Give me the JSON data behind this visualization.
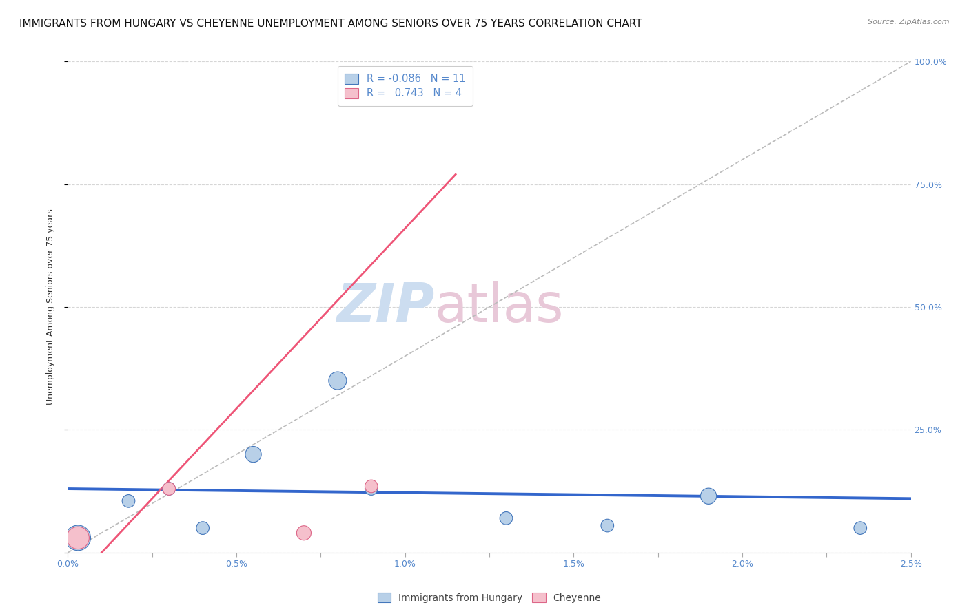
{
  "title": "IMMIGRANTS FROM HUNGARY VS CHEYENNE UNEMPLOYMENT AMONG SENIORS OVER 75 YEARS CORRELATION CHART",
  "source": "Source: ZipAtlas.com",
  "xlabel": "",
  "ylabel": "Unemployment Among Seniors over 75 years",
  "xlim": [
    0.0,
    0.025
  ],
  "ylim": [
    0.0,
    1.0
  ],
  "xtick_labels": [
    "0.0%",
    "",
    "0.5%",
    "",
    "1.0%",
    "",
    "1.5%",
    "",
    "2.0%",
    "",
    "2.5%"
  ],
  "xtick_vals": [
    0.0,
    0.0025,
    0.005,
    0.0075,
    0.01,
    0.0125,
    0.015,
    0.0175,
    0.02,
    0.0225,
    0.025
  ],
  "xtick_display": [
    true,
    false,
    true,
    false,
    true,
    false,
    true,
    false,
    true,
    false,
    true
  ],
  "ytick_labels_right": [
    "",
    "25.0%",
    "50.0%",
    "75.0%",
    "100.0%"
  ],
  "ytick_vals": [
    0.0,
    0.25,
    0.5,
    0.75,
    1.0
  ],
  "blue_scatter_x": [
    0.0003,
    0.0018,
    0.003,
    0.004,
    0.0055,
    0.008,
    0.009,
    0.013,
    0.016,
    0.019,
    0.0235
  ],
  "blue_scatter_y": [
    0.03,
    0.105,
    0.13,
    0.05,
    0.2,
    0.35,
    0.13,
    0.07,
    0.055,
    0.115,
    0.05
  ],
  "blue_scatter_sizes": [
    700,
    180,
    180,
    180,
    280,
    350,
    180,
    180,
    180,
    280,
    180
  ],
  "pink_scatter_x": [
    0.0003,
    0.003,
    0.007,
    0.009
  ],
  "pink_scatter_y": [
    0.03,
    0.13,
    0.04,
    0.135
  ],
  "pink_scatter_sizes": [
    550,
    180,
    230,
    180
  ],
  "blue_line_x": [
    0.0,
    0.025
  ],
  "blue_line_y": [
    0.13,
    0.11
  ],
  "pink_line_x": [
    0.001,
    0.0115
  ],
  "pink_line_y": [
    0.0,
    0.77
  ],
  "diag_line_x": [
    0.0,
    0.025
  ],
  "diag_line_y": [
    0.0,
    1.0
  ],
  "R_blue": "-0.086",
  "N_blue": "11",
  "R_pink": "0.743",
  "N_pink": "4",
  "blue_color": "#b8d0e8",
  "blue_dark": "#4477bb",
  "blue_line_color": "#3366cc",
  "pink_color": "#f5c0cc",
  "pink_dark": "#dd6688",
  "pink_line_color": "#ee5577",
  "axis_color": "#5588cc",
  "title_fontsize": 11,
  "label_fontsize": 9,
  "watermark_zip_color": "#ccddf0",
  "watermark_atlas_color": "#e8c8d8"
}
